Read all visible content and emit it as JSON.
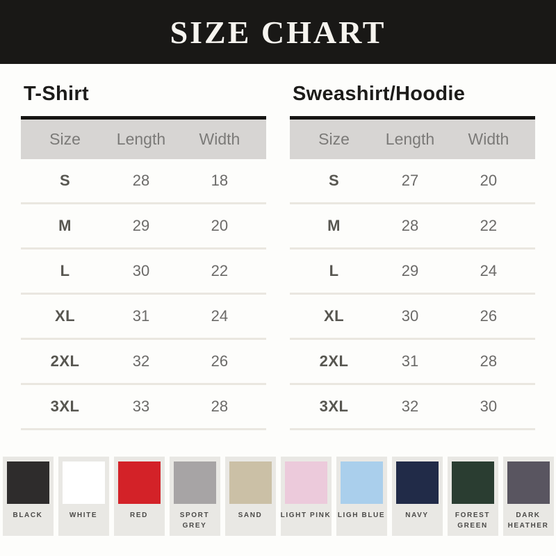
{
  "header": {
    "title": "SIZE CHART",
    "background_color": "#191816",
    "text_color": "#f6f4ef"
  },
  "chart_data": [
    {
      "type": "table",
      "title": "T-Shirt",
      "columns": [
        "Size",
        "Length",
        "Width"
      ],
      "rows": [
        [
          "S",
          "28",
          "18"
        ],
        [
          "M",
          "29",
          "20"
        ],
        [
          "L",
          "30",
          "22"
        ],
        [
          "XL",
          "31",
          "24"
        ],
        [
          "2XL",
          "32",
          "26"
        ],
        [
          "3XL",
          "33",
          "28"
        ]
      ]
    },
    {
      "type": "table",
      "title": "Sweashirt/Hoodie",
      "columns": [
        "Size",
        "Length",
        "Width"
      ],
      "rows": [
        [
          "S",
          "27",
          "20"
        ],
        [
          "M",
          "28",
          "22"
        ],
        [
          "L",
          "29",
          "24"
        ],
        [
          "XL",
          "30",
          "26"
        ],
        [
          "2XL",
          "31",
          "28"
        ],
        [
          "3XL",
          "32",
          "30"
        ]
      ]
    }
  ],
  "swatches": {
    "items": [
      {
        "name": "BLACK",
        "hex": "#2e2c2c"
      },
      {
        "name": "WHITE",
        "hex": "#ffffff"
      },
      {
        "name": "RED",
        "hex": "#d32228"
      },
      {
        "name": "SPORT GREY",
        "hex": "#a7a4a5"
      },
      {
        "name": "SAND",
        "hex": "#cbc0a6"
      },
      {
        "name": "LIGHT PINK",
        "hex": "#eccadb"
      },
      {
        "name": "LIGH BLUE",
        "hex": "#aacfec"
      },
      {
        "name": "NAVY",
        "hex": "#212b48"
      },
      {
        "name": "FOREST GREEN",
        "hex": "#2a3d31"
      },
      {
        "name": "DARK HEATHER",
        "hex": "#595560"
      }
    ]
  }
}
